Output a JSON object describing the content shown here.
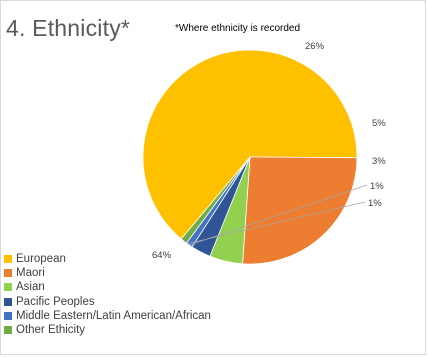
{
  "chart_data": {
    "type": "pie",
    "title": "4. Ethnicity*",
    "note": "*Where ethnicity is recorded",
    "categories": [
      "European",
      "Maori",
      "Asian",
      "Pacific Peoples",
      "Middle Eastern/Latin American/African",
      "Other Ethicity"
    ],
    "values": [
      64,
      26,
      5,
      3,
      1,
      1
    ],
    "data_labels": [
      "64%",
      "26%",
      "5%",
      "3%",
      "1%",
      "1%"
    ],
    "colors": [
      "#FFC000",
      "#ED7D31",
      "#92D050",
      "#2F5597",
      "#4472C4",
      "#70AD47"
    ],
    "legend_position": "bottom-left"
  }
}
